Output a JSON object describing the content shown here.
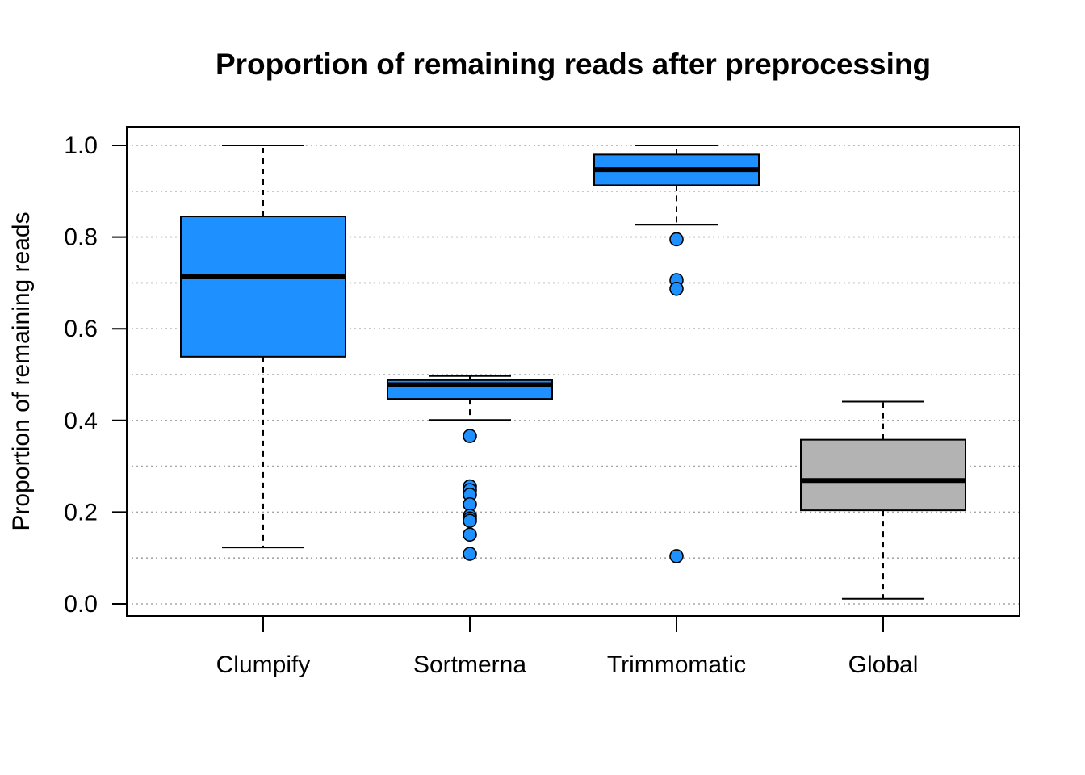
{
  "chart_data": {
    "type": "box",
    "title": "Proportion of remaining reads after preprocessing",
    "xlabel": "",
    "ylabel": "Proportion of remaining reads",
    "ylim": [
      0,
      1
    ],
    "yticks": [
      0,
      0.2,
      0.4,
      0.6,
      0.8,
      1.0
    ],
    "ytick_labels": [
      "0.0",
      "0.2",
      "0.4",
      "0.6",
      "0.8",
      "1.0"
    ],
    "grid": {
      "horizontal": true,
      "lines": [
        0,
        0.1,
        0.2,
        0.3,
        0.4,
        0.5,
        0.6,
        0.7,
        0.8,
        0.9,
        1.0
      ],
      "style": "dotted",
      "color": "#a6a6a6"
    },
    "categories": [
      "Clumpify",
      "Sortmerna",
      "Trimmomatic",
      "Global"
    ],
    "boxes": [
      {
        "category": "Clumpify",
        "whisker_low": 0.123,
        "q1": 0.539,
        "median": 0.713,
        "q3": 0.845,
        "whisker_high": 1.0,
        "outliers": [],
        "fill": "#1e90ff"
      },
      {
        "category": "Sortmerna",
        "whisker_low": 0.401,
        "q1": 0.447,
        "median": 0.478,
        "q3": 0.488,
        "whisker_high": 0.497,
        "outliers": [
          0.366,
          0.256,
          0.248,
          0.238,
          0.217,
          0.192,
          0.186,
          0.181,
          0.151,
          0.109
        ],
        "fill": "#1e90ff"
      },
      {
        "category": "Trimmomatic",
        "whisker_low": 0.827,
        "q1": 0.913,
        "median": 0.947,
        "q3": 0.98,
        "whisker_high": 1.0,
        "outliers": [
          0.795,
          0.706,
          0.687,
          0.104
        ],
        "fill": "#1e90ff"
      },
      {
        "category": "Global",
        "whisker_low": 0.011,
        "q1": 0.204,
        "median": 0.269,
        "q3": 0.358,
        "whisker_high": 0.441,
        "outliers": [],
        "fill": "#b3b3b3"
      }
    ]
  }
}
